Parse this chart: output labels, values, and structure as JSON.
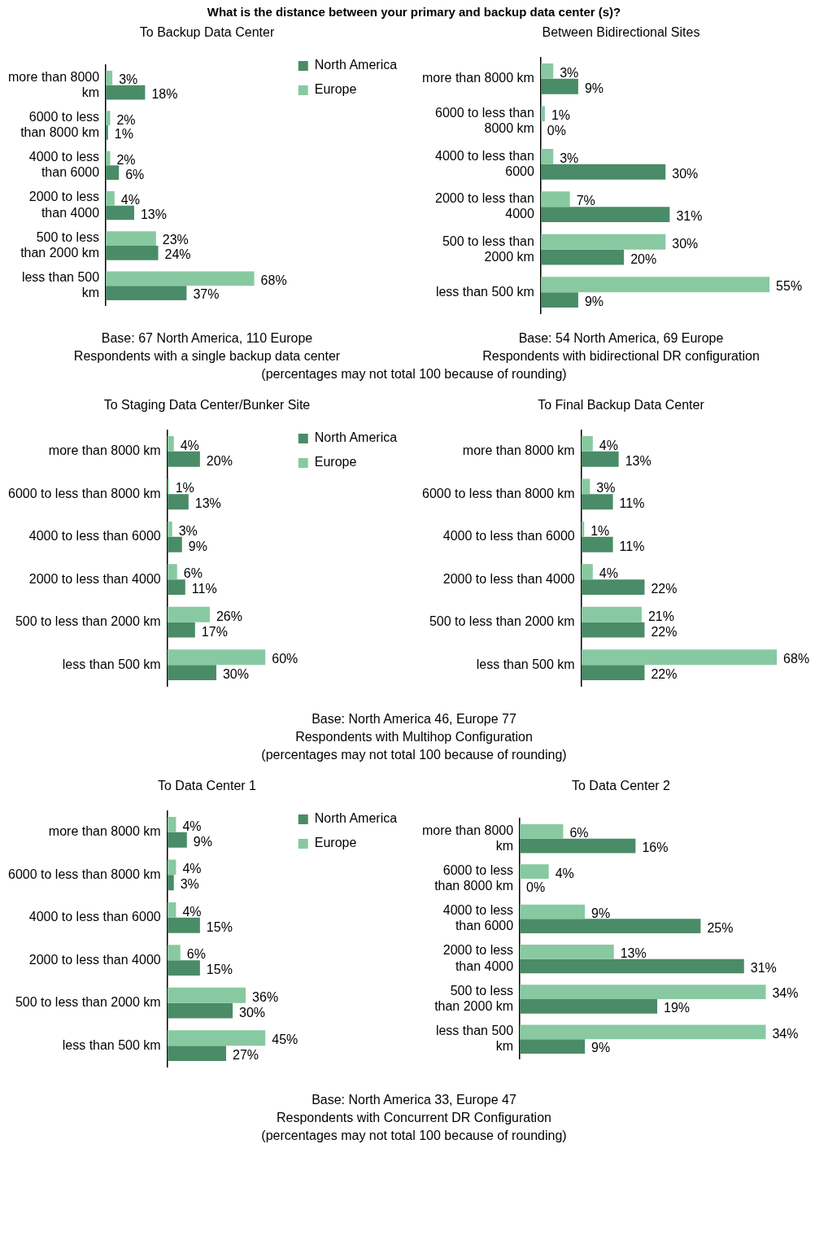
{
  "chart_data": [
    {
      "type": "bar",
      "orientation": "horizontal",
      "title": "What is the distance between your primary and backup data center (s)?",
      "subtitle": "To Backup Data Center",
      "categories": [
        "more than 8000 km",
        "6000 to less than 8000 km",
        "4000 to less than 6000",
        "2000 to less than 4000",
        "500 to less than 2000 km",
        "less than 500 km"
      ],
      "series": [
        {
          "name": "Europe",
          "color": "#88c9a1",
          "values": [
            3,
            2,
            2,
            4,
            23,
            68
          ],
          "value_labels": [
            "3%",
            "2%",
            "2%",
            "4%",
            "23%",
            "68%"
          ]
        },
        {
          "name": "North America",
          "color": "#4a8c67",
          "values": [
            18,
            1,
            6,
            13,
            24,
            37
          ],
          "value_labels": [
            "18%",
            "1%",
            "6%",
            "13%",
            "24%",
            "37%"
          ]
        }
      ],
      "legend": "right",
      "annotations": [
        "Base: 67 North America, 110 Europe",
        "Respondents with a single backup data center",
        "(percentages may not total 100 because of rounding)"
      ]
    },
    {
      "type": "bar",
      "orientation": "horizontal",
      "subtitle": "Between Bidirectional Sites",
      "categories": [
        "more than 8000 km",
        "6000 to less than 8000 km",
        "4000 to less than 6000",
        "2000 to less than 4000",
        "500 to less than 2000 km",
        "less than 500 km"
      ],
      "series": [
        {
          "color": "#88c9a1",
          "values": [
            3,
            1,
            3,
            7,
            30,
            55
          ],
          "value_labels": [
            "3%",
            "1%",
            "3%",
            "7%",
            "30%",
            "55%"
          ]
        },
        {
          "color": "#4a8c67",
          "values": [
            9,
            0,
            30,
            31,
            20,
            9
          ],
          "value_labels": [
            "9%",
            "0%",
            "30%",
            "31%",
            "20%",
            "9%"
          ]
        }
      ],
      "annotations": [
        "Base: 54 North America, 69 Europe",
        "Respondents with bidirectional DR configuration"
      ]
    },
    {
      "type": "bar",
      "orientation": "horizontal",
      "subtitle": "To Staging Data Center/Bunker Site",
      "categories": [
        "more than 8000 km",
        "6000 to less than 8000 km",
        "4000 to less than 6000",
        "2000 to less than 4000",
        "500 to less than 2000 km",
        "less than 500 km"
      ],
      "series": [
        {
          "name": "Europe",
          "color": "#88c9a1",
          "values": [
            4,
            1,
            3,
            6,
            26,
            60
          ],
          "value_labels": [
            "4%",
            "1%",
            "3%",
            "6%",
            "26%",
            "60%"
          ]
        },
        {
          "name": "North America",
          "color": "#4a8c67",
          "values": [
            20,
            13,
            9,
            11,
            17,
            30
          ],
          "value_labels": [
            "20%",
            "13%",
            "9%",
            "11%",
            "17%",
            "30%"
          ]
        }
      ],
      "legend": "right",
      "annotations": [
        "Base: North America 46, Europe 77",
        "Respondents with Multihop Configuration",
        "(percentages may not total 100 because of rounding)"
      ]
    },
    {
      "type": "bar",
      "orientation": "horizontal",
      "subtitle": "To Final Backup Data Center",
      "categories": [
        "more than 8000 km",
        "6000 to less than 8000 km",
        "4000 to less than 6000",
        "2000 to less than 4000",
        "500 to less than 2000 km",
        "less than 500 km"
      ],
      "series": [
        {
          "color": "#88c9a1",
          "values": [
            4,
            3,
            1,
            4,
            21,
            68
          ],
          "value_labels": [
            "4%",
            "3%",
            "1%",
            "4%",
            "21%",
            "68%"
          ]
        },
        {
          "color": "#4a8c67",
          "values": [
            13,
            11,
            11,
            22,
            22,
            22
          ],
          "value_labels": [
            "13%",
            "11%",
            "11%",
            "22%",
            "22%",
            "22%"
          ]
        }
      ]
    },
    {
      "type": "bar",
      "orientation": "horizontal",
      "subtitle": "To Data Center 1",
      "categories": [
        "more than 8000 km",
        "6000 to less than 8000 km",
        "4000 to less than 6000",
        "2000 to less than 4000",
        "500 to less than 2000 km",
        "less than 500 km"
      ],
      "series": [
        {
          "name": "Europe",
          "color": "#88c9a1",
          "values": [
            4,
            4,
            4,
            6,
            36,
            45
          ],
          "value_labels": [
            "4%",
            "4%",
            "4%",
            "6%",
            "36%",
            "45%"
          ]
        },
        {
          "name": "North America",
          "color": "#4a8c67",
          "values": [
            9,
            3,
            15,
            15,
            30,
            27
          ],
          "value_labels": [
            "9%",
            "3%",
            "15%",
            "15%",
            "30%",
            "27%"
          ]
        }
      ],
      "legend": "right",
      "annotations": [
        "Base: North America 33, Europe 47",
        "Respondents with Concurrent DR Configuration",
        "(percentages may not total 100 because of rounding)"
      ]
    },
    {
      "type": "bar",
      "orientation": "horizontal",
      "subtitle": "To Data Center 2",
      "categories": [
        "more than 8000 km",
        "6000 to less than 8000 km",
        "4000 to less than 6000",
        "2000 to less than 4000",
        "500 to less than 2000 km",
        "less than 500 km"
      ],
      "series": [
        {
          "color": "#88c9a1",
          "values": [
            6,
            4,
            9,
            13,
            34,
            34
          ],
          "value_labels": [
            "6%",
            "4%",
            "9%",
            "13%",
            "34%",
            "34%"
          ]
        },
        {
          "color": "#4a8c67",
          "values": [
            16,
            0,
            25,
            31,
            19,
            9
          ],
          "value_labels": [
            "16%",
            "0%",
            "25%",
            "31%",
            "19%",
            "9%"
          ]
        }
      ]
    }
  ]
}
